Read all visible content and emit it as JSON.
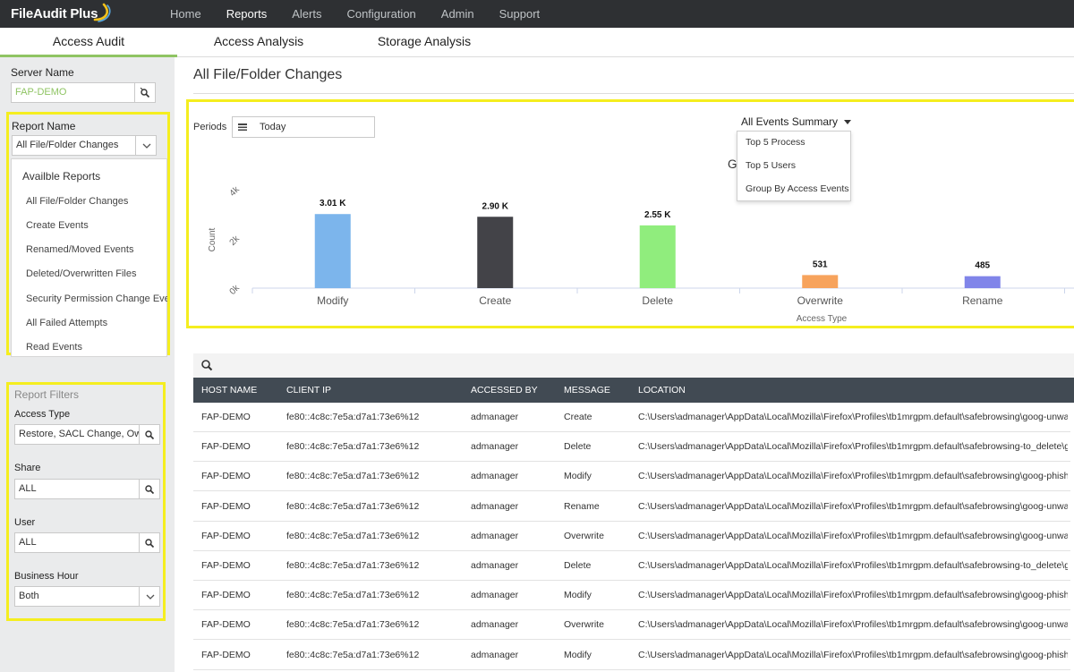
{
  "app": {
    "logo_text": "FileAudit Plus",
    "nav": [
      "Home",
      "Reports",
      "Alerts",
      "Configuration",
      "Admin",
      "Support"
    ],
    "nav_active": "Reports",
    "subtabs": [
      "Access Audit",
      "Access Analysis",
      "Storage Analysis"
    ],
    "subtab_active": "Access Audit"
  },
  "sidebar": {
    "server_label": "Server Name",
    "server_value": "FAP-DEMO",
    "report_label": "Report Name",
    "report_value": "All File/Folder Changes",
    "available_title": "Availble Reports",
    "reports": [
      "All File/Folder Changes",
      "Create Events",
      "Renamed/Moved Events",
      "Deleted/Overwritten Files",
      "Security Permission Change Events",
      "All Failed Attempts",
      "Read Events"
    ],
    "filters_title": "Report Filters",
    "filters": [
      {
        "label": "Access Type",
        "value": "Restore, SACL Change, Owner Change"
      },
      {
        "label": "Share",
        "value": "ALL"
      },
      {
        "label": "User",
        "value": "ALL"
      },
      {
        "label": "Business Hour",
        "value": "Both"
      }
    ]
  },
  "main": {
    "title": "All File/Folder Changes",
    "periods_label": "Periods",
    "period_value": "Today",
    "summary_label": "All Events Summary",
    "summary_menu": [
      "Top 5 Process",
      "Top 5 Users",
      "Group By Access Events"
    ],
    "chart_title_left": "G",
    "chart_title_right": "nts"
  },
  "chart_data": {
    "type": "bar",
    "title": "Group By Access Events",
    "categories": [
      "Modify",
      "Create",
      "Delete",
      "Overwrite",
      "Rename"
    ],
    "values": [
      3010,
      2900,
      2550,
      531,
      485
    ],
    "data_labels": [
      "3.01 K",
      "2.90 K",
      "2.55 K",
      "531",
      "485"
    ],
    "colors": [
      "#7cb5ec",
      "#434348",
      "#90ed7d",
      "#f7a35c",
      "#8085e9"
    ],
    "xlabel": "Access Type",
    "ylabel": "Count",
    "yticks": [
      "0k",
      "2k",
      "4k"
    ],
    "ylim": [
      0,
      4000
    ]
  },
  "table": {
    "columns": [
      "HOST NAME",
      "CLIENT IP",
      "ACCESSED BY",
      "MESSAGE",
      "LOCATION"
    ],
    "rows": [
      [
        "FAP-DEMO",
        "fe80::4c8c:7e5a:d7a1:73e6%12",
        "admanager",
        "Create",
        "C:\\Users\\admanager\\AppData\\Local\\Mozilla\\Firefox\\Profiles\\tb1mrgpm.default\\safebrowsing\\goog-unwanted"
      ],
      [
        "FAP-DEMO",
        "fe80::4c8c:7e5a:d7a1:73e6%12",
        "admanager",
        "Delete",
        "C:\\Users\\admanager\\AppData\\Local\\Mozilla\\Firefox\\Profiles\\tb1mrgpm.default\\safebrowsing-to_delete\\goog"
      ],
      [
        "FAP-DEMO",
        "fe80::4c8c:7e5a:d7a1:73e6%12",
        "admanager",
        "Modify",
        "C:\\Users\\admanager\\AppData\\Local\\Mozilla\\Firefox\\Profiles\\tb1mrgpm.default\\safebrowsing\\goog-phish"
      ],
      [
        "FAP-DEMO",
        "fe80::4c8c:7e5a:d7a1:73e6%12",
        "admanager",
        "Rename",
        "C:\\Users\\admanager\\AppData\\Local\\Mozilla\\Firefox\\Profiles\\tb1mrgpm.default\\safebrowsing\\goog-unwanted"
      ],
      [
        "FAP-DEMO",
        "fe80::4c8c:7e5a:d7a1:73e6%12",
        "admanager",
        "Overwrite",
        "C:\\Users\\admanager\\AppData\\Local\\Mozilla\\Firefox\\Profiles\\tb1mrgpm.default\\safebrowsing\\goog-unwanted"
      ],
      [
        "FAP-DEMO",
        "fe80::4c8c:7e5a:d7a1:73e6%12",
        "admanager",
        "Delete",
        "C:\\Users\\admanager\\AppData\\Local\\Mozilla\\Firefox\\Profiles\\tb1mrgpm.default\\safebrowsing-to_delete\\goog"
      ],
      [
        "FAP-DEMO",
        "fe80::4c8c:7e5a:d7a1:73e6%12",
        "admanager",
        "Modify",
        "C:\\Users\\admanager\\AppData\\Local\\Mozilla\\Firefox\\Profiles\\tb1mrgpm.default\\safebrowsing\\goog-phish"
      ],
      [
        "FAP-DEMO",
        "fe80::4c8c:7e5a:d7a1:73e6%12",
        "admanager",
        "Overwrite",
        "C:\\Users\\admanager\\AppData\\Local\\Mozilla\\Firefox\\Profiles\\tb1mrgpm.default\\safebrowsing\\goog-unwanted"
      ],
      [
        "FAP-DEMO",
        "fe80::4c8c:7e5a:d7a1:73e6%12",
        "admanager",
        "Modify",
        "C:\\Users\\admanager\\AppData\\Local\\Mozilla\\Firefox\\Profiles\\tb1mrgpm.default\\safebrowsing\\goog-phish"
      ]
    ]
  }
}
